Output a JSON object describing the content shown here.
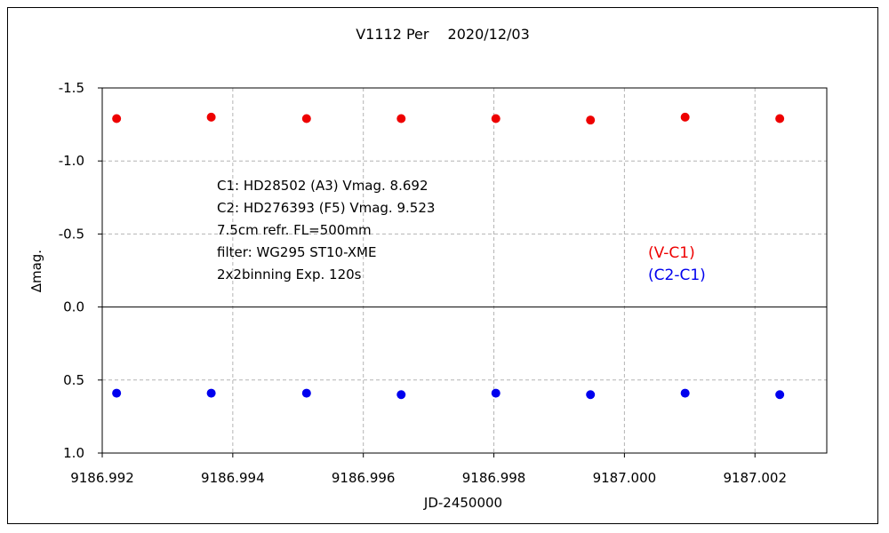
{
  "chart_data": {
    "type": "scatter",
    "title": "V1112 Per　 2020/12/03",
    "xlabel": "JD-2450000",
    "ylabel": "∆mag.",
    "xlim": [
      9186.992,
      9187.0031
    ],
    "ylim": [
      -1.5,
      1.0
    ],
    "y_inverted": true,
    "x_ticks": [
      "9186.992",
      "9186.994",
      "9186.996",
      "9186.998",
      "9187.000",
      "9187.002"
    ],
    "x_tick_values": [
      9186.992,
      9186.994,
      9186.996,
      9186.998,
      9187.0,
      9187.002
    ],
    "y_ticks": [
      "-1.5",
      "-1.0",
      "-0.5",
      "0.0",
      "0.5",
      "1.0"
    ],
    "y_tick_values": [
      -1.5,
      -1.0,
      -0.5,
      0.0,
      0.5,
      1.0
    ],
    "grid": true,
    "annotations": [
      "C1: HD28502 (A3) Vmag. 8.692",
      "C2: HD276393 (F5) Vmag. 9.523",
      "7.5cm refr. FL=500mm",
      "filter: WG295  ST10-XME",
      "2x2binning  Exp. 120s"
    ],
    "legend": [
      {
        "label": "(V-C1)",
        "color": "#ee0000"
      },
      {
        "label": "(C2-C1)",
        "color": "#0000ee"
      }
    ],
    "series": [
      {
        "name": "(V-C1)",
        "color": "#ee0000",
        "x": [
          9186.99222,
          9186.99367,
          9186.99513,
          9186.99658,
          9186.99803,
          9186.99948,
          9187.00093,
          9187.00238
        ],
        "y": [
          -1.29,
          -1.3,
          -1.29,
          -1.29,
          -1.29,
          -1.28,
          -1.3,
          -1.29
        ]
      },
      {
        "name": "(C2-C1)",
        "color": "#0000ee",
        "x": [
          9186.99222,
          9186.99367,
          9186.99513,
          9186.99658,
          9186.99803,
          9186.99948,
          9187.00093,
          9187.00238
        ],
        "y": [
          0.59,
          0.59,
          0.59,
          0.6,
          0.59,
          0.6,
          0.59,
          0.6
        ]
      }
    ]
  }
}
